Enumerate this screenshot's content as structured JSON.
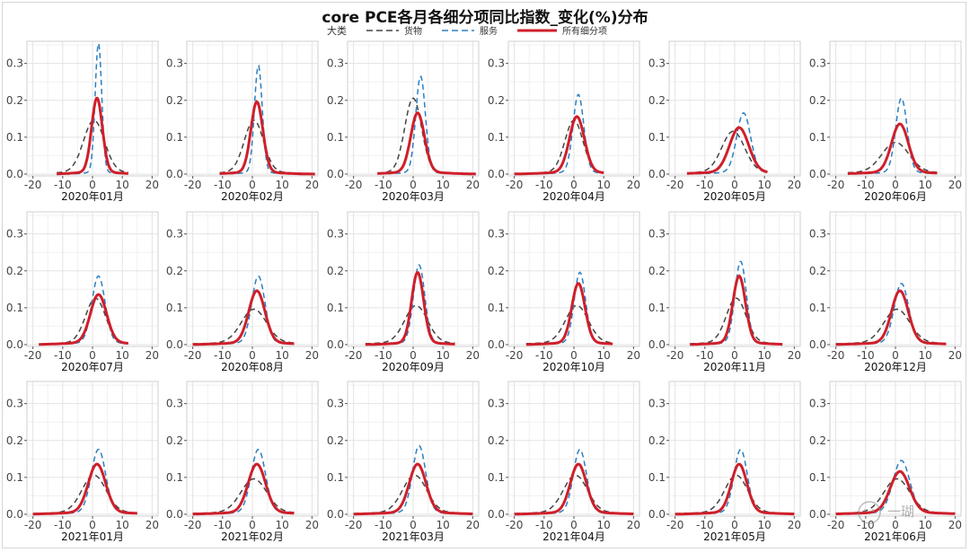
{
  "title": "core PCE各月各细分项同比指数_变化(%)分布",
  "legend": {
    "title": "大类",
    "items": [
      {
        "label": "货物",
        "color": "#444444",
        "dash": "7,4"
      },
      {
        "label": "服务",
        "color": "#2a7fc1",
        "dash": "7,4"
      },
      {
        "label": "所有细分项",
        "color": "#cf1f2a",
        "dash": ""
      }
    ]
  },
  "chart_data": {
    "type": "line",
    "layout": "small-multiples 3x6",
    "x_ticks": [
      -20,
      -10,
      0,
      10,
      20
    ],
    "y_ticks": [
      0.0,
      0.1,
      0.2,
      0.3
    ],
    "y_tick_labels": [
      "0.0",
      "0.1",
      "0.2",
      "0.3"
    ],
    "xlim": [
      -22,
      22
    ],
    "ylim": [
      -0.005,
      0.36
    ],
    "grid": true,
    "series_names": [
      "货物",
      "服务",
      "所有细分项"
    ],
    "panels": [
      {
        "label": "2020年01月",
        "xrange": [
          -12,
          12
        ],
        "goods": {
          "peak": 0.14,
          "center": 0.5,
          "width": 3.5
        },
        "services": {
          "peak": 0.35,
          "center": 2,
          "width": 1.1
        },
        "all": {
          "peak": 0.2,
          "center": 1.5,
          "width": 1.8
        }
      },
      {
        "label": "2020年02月",
        "xrange": [
          -11,
          21
        ],
        "goods": {
          "peak": 0.14,
          "center": 0.5,
          "width": 3.2
        },
        "services": {
          "peak": 0.29,
          "center": 2,
          "width": 1.3
        },
        "all": {
          "peak": 0.19,
          "center": 1.5,
          "width": 2.0
        }
      },
      {
        "label": "2020年03月",
        "xrange": [
          -12,
          21
        ],
        "goods": {
          "peak": 0.2,
          "center": 0,
          "width": 2.8
        },
        "services": {
          "peak": 0.26,
          "center": 2.5,
          "width": 1.6
        },
        "all": {
          "peak": 0.16,
          "center": 1.5,
          "width": 2.3
        }
      },
      {
        "label": "2020年04月",
        "xrange": [
          -20,
          10
        ],
        "goods": {
          "peak": 0.14,
          "center": 0,
          "width": 3.0
        },
        "services": {
          "peak": 0.21,
          "center": 1.5,
          "width": 1.8
        },
        "all": {
          "peak": 0.15,
          "center": 1,
          "width": 2.5
        }
      },
      {
        "label": "2020年05月",
        "xrange": [
          -16,
          11
        ],
        "goods": {
          "peak": 0.11,
          "center": -0.5,
          "width": 3.8
        },
        "services": {
          "peak": 0.16,
          "center": 3,
          "width": 2.3
        },
        "all": {
          "peak": 0.12,
          "center": 1.5,
          "width": 3.2
        }
      },
      {
        "label": "2020年06月",
        "xrange": [
          -16,
          14
        ],
        "goods": {
          "peak": 0.08,
          "center": 0,
          "width": 4.5
        },
        "services": {
          "peak": 0.2,
          "center": 2,
          "width": 1.9
        },
        "all": {
          "peak": 0.13,
          "center": 1.5,
          "width": 2.8
        }
      },
      {
        "label": "2020年07月",
        "xrange": [
          -18,
          12
        ],
        "goods": {
          "peak": 0.12,
          "center": 1,
          "width": 3.3
        },
        "services": {
          "peak": 0.18,
          "center": 2,
          "width": 2.2
        },
        "all": {
          "peak": 0.13,
          "center": 2,
          "width": 2.7
        }
      },
      {
        "label": "2020年08月",
        "xrange": [
          -20,
          14
        ],
        "goods": {
          "peak": 0.09,
          "center": 0.5,
          "width": 4.2
        },
        "services": {
          "peak": 0.18,
          "center": 2,
          "width": 2.2
        },
        "all": {
          "peak": 0.14,
          "center": 1.5,
          "width": 2.7
        }
      },
      {
        "label": "2020年09月",
        "xrange": [
          -16,
          14
        ],
        "goods": {
          "peak": 0.1,
          "center": 1,
          "width": 3.8
        },
        "services": {
          "peak": 0.21,
          "center": 2,
          "width": 1.9
        },
        "all": {
          "peak": 0.19,
          "center": 1.5,
          "width": 2.0
        }
      },
      {
        "label": "2020年10月",
        "xrange": [
          -16,
          13
        ],
        "goods": {
          "peak": 0.1,
          "center": 1,
          "width": 3.8
        },
        "services": {
          "peak": 0.19,
          "center": 2,
          "width": 1.9
        },
        "all": {
          "peak": 0.16,
          "center": 1.5,
          "width": 2.2
        }
      },
      {
        "label": "2020年11月",
        "xrange": [
          -15,
          16
        ],
        "goods": {
          "peak": 0.12,
          "center": 0.5,
          "width": 3.3
        },
        "services": {
          "peak": 0.22,
          "center": 2,
          "width": 1.9
        },
        "all": {
          "peak": 0.18,
          "center": 1.5,
          "width": 2.1
        }
      },
      {
        "label": "2020年12月",
        "xrange": [
          -20,
          17
        ],
        "goods": {
          "peak": 0.09,
          "center": 0.5,
          "width": 4.3
        },
        "services": {
          "peak": 0.16,
          "center": 2,
          "width": 2.4
        },
        "all": {
          "peak": 0.14,
          "center": 1.5,
          "width": 2.8
        }
      },
      {
        "label": "2021年01月",
        "xrange": [
          -20,
          15
        ],
        "goods": {
          "peak": 0.1,
          "center": 0.5,
          "width": 4.0
        },
        "services": {
          "peak": 0.17,
          "center": 2,
          "width": 2.4
        },
        "all": {
          "peak": 0.13,
          "center": 1.5,
          "width": 2.9
        }
      },
      {
        "label": "2021年02月",
        "xrange": [
          -20,
          14
        ],
        "goods": {
          "peak": 0.09,
          "center": 0.5,
          "width": 4.3
        },
        "services": {
          "peak": 0.17,
          "center": 2,
          "width": 2.4
        },
        "all": {
          "peak": 0.13,
          "center": 1.5,
          "width": 2.9
        }
      },
      {
        "label": "2021年03月",
        "xrange": [
          -20,
          20
        ],
        "goods": {
          "peak": 0.1,
          "center": 0.5,
          "width": 4.0
        },
        "services": {
          "peak": 0.18,
          "center": 2,
          "width": 2.2
        },
        "all": {
          "peak": 0.13,
          "center": 1.5,
          "width": 2.8
        }
      },
      {
        "label": "2021年04月",
        "xrange": [
          -20,
          20
        ],
        "goods": {
          "peak": 0.1,
          "center": 0.5,
          "width": 4.0
        },
        "services": {
          "peak": 0.17,
          "center": 2,
          "width": 2.2
        },
        "all": {
          "peak": 0.13,
          "center": 1.5,
          "width": 2.7
        }
      },
      {
        "label": "2021年05月",
        "xrange": [
          -20,
          20
        ],
        "goods": {
          "peak": 0.1,
          "center": 0.5,
          "width": 3.8
        },
        "services": {
          "peak": 0.17,
          "center": 2,
          "width": 2.2
        },
        "all": {
          "peak": 0.13,
          "center": 1.5,
          "width": 2.6
        }
      },
      {
        "label": "2021年06月",
        "xrange": [
          -20,
          20
        ],
        "goods": {
          "peak": 0.09,
          "center": 0.5,
          "width": 4.3
        },
        "services": {
          "peak": 0.14,
          "center": 2,
          "width": 2.8
        },
        "all": {
          "peak": 0.11,
          "center": 1.5,
          "width": 3.2
        }
      }
    ]
  },
  "watermark": {
    "text": "一瑚"
  }
}
